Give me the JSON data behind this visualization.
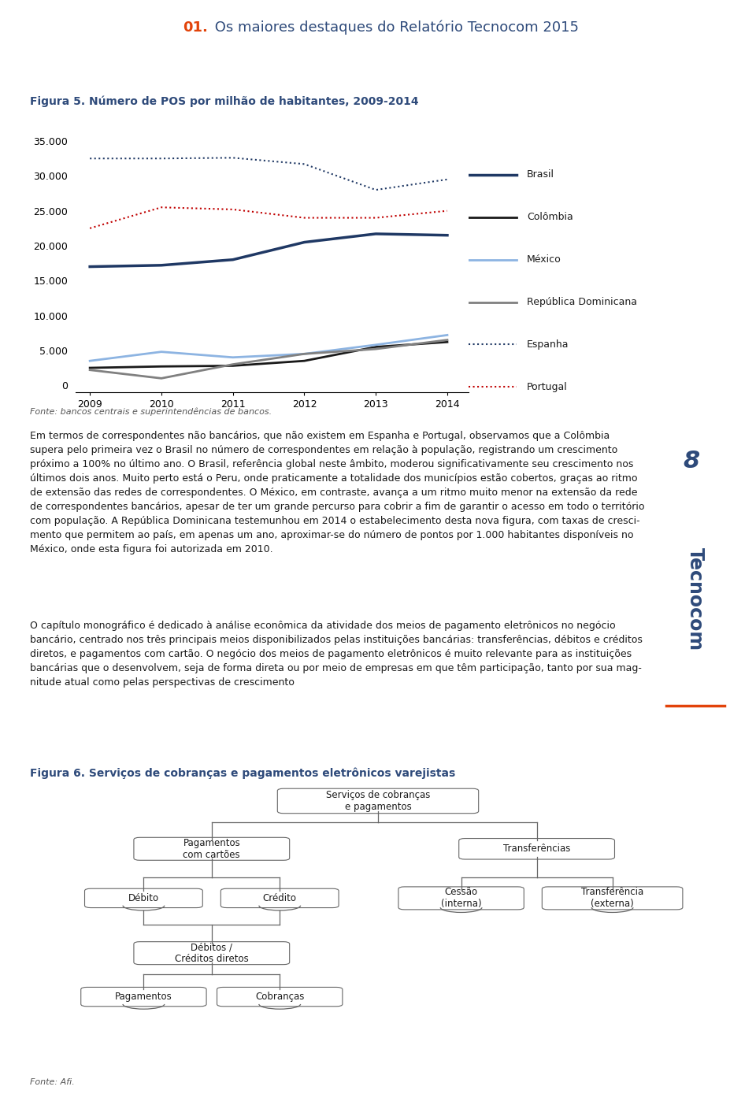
{
  "page_title_num": "01.",
  "page_title_text": " Os maiores destaques do Relatório Tecnocom 2015",
  "fig5_title": "Figura 5. Número de POS por milhão de habitantes, 2009-2014",
  "years": [
    2009,
    2010,
    2011,
    2012,
    2013,
    2014
  ],
  "brasil": [
    17000,
    17200,
    18000,
    20500,
    21700,
    21500
  ],
  "colombia": [
    2500,
    2700,
    2800,
    3500,
    5500,
    6200
  ],
  "mexico": [
    3500,
    4800,
    4000,
    4500,
    5800,
    7200
  ],
  "rep_dom": [
    2200,
    1000,
    3000,
    4500,
    5200,
    6500
  ],
  "espanha": [
    32500,
    32500,
    32600,
    31700,
    28000,
    29500
  ],
  "portugal": [
    22500,
    25500,
    25200,
    24000,
    24000,
    25000
  ],
  "brasil_color": "#1f3864",
  "colombia_color": "#1a1a1a",
  "mexico_color": "#8db4e2",
  "rep_dom_color": "#808080",
  "espanha_color": "#1f3864",
  "portugal_color": "#c00000",
  "yticks": [
    0,
    5000,
    10000,
    15000,
    20000,
    25000,
    30000,
    35000
  ],
  "ytick_labels": [
    "0",
    "5.000",
    "10.000",
    "15.000",
    "20.000",
    "25.000",
    "30.000",
    "35.000"
  ],
  "fonte_chart": "Fonte: bancos centrais e superintendências de bancos.",
  "body_text1": "Em termos de correspondentes não bancários, que não existem em Espanha e Portugal, observamos que a Colômbia\nsupera pelo primeira vez o Brasil no número de correspondentes em relação à população, registrando um crescimento\npróximo a 100% no último ano. O Brasil, referência global neste âmbito, moderou significativamente seu crescimento nos\núltimos dois anos. Muito perto está o Peru, onde praticamente a totalidade dos municípios estão cobertos, graças ao ritmo\nde extensão das redes de correspondentes. O México, em contraste, avança a um ritmo muito menor na extensão da rede\nde correspondentes bancários, apesar de ter um grande percurso para cobrir a fim de garantir o acesso em todo o território\ncom população. A República Dominicana testemunhou em 2014 o estabelecimento desta nova figura, com taxas de cresci-\nmento que permitem ao país, em apenas um ano, aproximar-se do número de pontos por 1.000 habitantes disponíveis no\nMéxico, onde esta figura foi autorizada em 2010.",
  "body_text2": "O capítulo monográfico é dedicado à análise econômica da atividade dos meios de pagamento eletrônicos no negócio\nbancário, centrado nos três principais meios disponibilizados pelas instituições bancárias: transferências, débitos e créditos\ndiretos, e pagamentos com cartão. O negócio dos meios de pagamento eletrônicos é muito relevante para as instituições\nbancárias que o desenvolvem, seja de forma direta ou por meio de empresas em que têm participação, tanto por sua mag-\nnitude atual como pelas perspectivas de crescimento",
  "fig6_title": "Figura 6. Serviços de cobranças e pagamentos eletrônicos varejistas",
  "fonte_fig6": "Fonte: Afi.",
  "page_num": "8",
  "tecnocom_text": "Tecnocom",
  "title_color": "#2e4a7a",
  "title_num_color": "#e2430a",
  "fig_title_color": "#2e4a7a",
  "body_color": "#1a1a1a",
  "fonte_color": "#555555",
  "page_bg": "#ffffff"
}
